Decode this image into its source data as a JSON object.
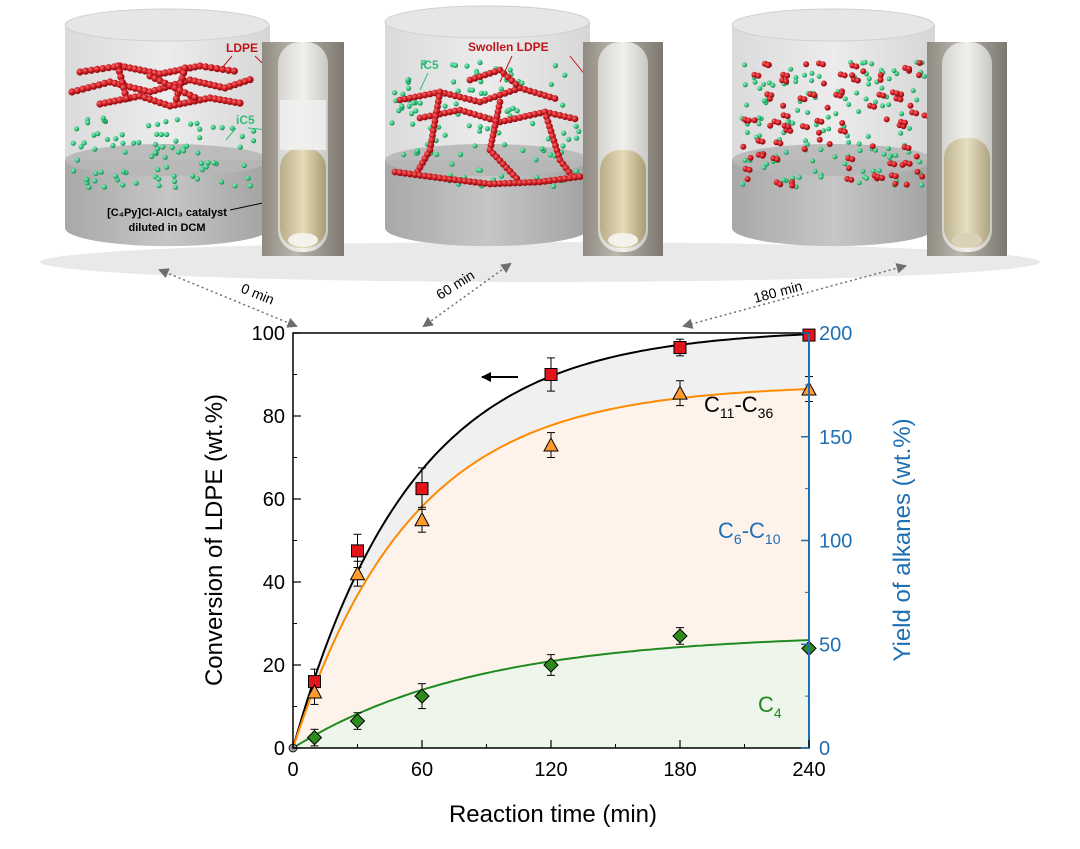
{
  "panels": [
    {
      "time_label": "0 min",
      "labels": {
        "ldpe": "LDPE",
        "ic5": "iC5",
        "catalyst_line1": "[C₄Py]Cl-AlCl₃ catalyst",
        "catalyst_line2": "diluted in DCM"
      }
    },
    {
      "time_label": "60 min",
      "labels": {
        "ldpe": "Swollen LDPE",
        "ic5": "iC5"
      }
    },
    {
      "time_label": "180 min",
      "labels": {}
    }
  ],
  "colors": {
    "total": "#000000",
    "c6c10": "#ff8a00",
    "c4": "#1f8a1f",
    "right_axis": "#1f6fb5",
    "polymer": "#c0141b",
    "solvent": "#2fbf7a",
    "marker_square": "#e3151a",
    "marker_triangle": "#ff9a2e",
    "marker_diamond": "#2e8a1a"
  },
  "chart_data": {
    "type": "scatter",
    "xlabel": "Reaction time (min)",
    "ylabel": "Conversion of LDPE (wt.%)",
    "y2label": "Yield of alkanes  (wt.%)",
    "xlim": [
      0,
      240
    ],
    "ylim": [
      0,
      100
    ],
    "y2lim": [
      0,
      200
    ],
    "xticks": [
      0,
      60,
      120,
      180,
      240
    ],
    "yticks": [
      0,
      20,
      40,
      60,
      80,
      100
    ],
    "y2ticks": [
      0,
      50,
      100,
      150,
      200
    ],
    "grid": false,
    "series": [
      {
        "key": "ldpe_conversion",
        "marker": "square",
        "axis": "left",
        "x": [
          10,
          30,
          60,
          120,
          180,
          240
        ],
        "y": [
          16,
          47.5,
          62.5,
          90,
          96.5,
          99.5
        ],
        "err": [
          3,
          4,
          5,
          4,
          2,
          1
        ],
        "fit_endpoint": 99.7
      },
      {
        "key": "C6-C10",
        "marker": "triangle",
        "axis": "left",
        "x": [
          10,
          30,
          60,
          120,
          180,
          240
        ],
        "y": [
          13.5,
          42,
          55,
          73,
          85.5,
          86.5
        ],
        "err": [
          3,
          3,
          3,
          3,
          3,
          3
        ],
        "fit_endpoint": 86.5
      },
      {
        "key": "C4",
        "marker": "diamond",
        "axis": "left",
        "x": [
          10,
          30,
          60,
          120,
          180,
          240
        ],
        "y": [
          2.5,
          6.5,
          12.5,
          20,
          27,
          24
        ],
        "err": [
          2,
          2,
          3,
          2.5,
          2,
          0
        ],
        "fit_endpoint": 26
      }
    ],
    "annotations": {
      "c11c36": {
        "main": "C",
        "sub1": "11",
        "dash": "-C",
        "sub2": "36"
      },
      "c6c10": {
        "main": "C",
        "sub1": "6",
        "dash": "-C",
        "sub2": "10"
      },
      "c4": {
        "main": "C",
        "sub1": "4"
      }
    }
  }
}
